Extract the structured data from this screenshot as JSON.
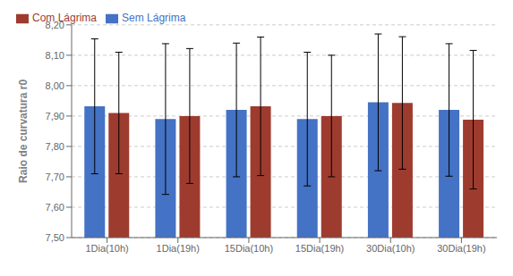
{
  "chart_data": {
    "type": "bar",
    "categories": [
      "1Dia(10h)",
      "1Dia(19h)",
      "15Dia(10h)",
      "15Dia(19h)",
      "30Dia(10h)",
      "30Dia(19h)"
    ],
    "series": [
      {
        "name": "Sem Lágrima",
        "color": "#4472C4",
        "values": [
          7.932,
          7.89,
          7.92,
          7.89,
          7.945,
          7.92
        ],
        "errors": [
          0.222,
          0.248,
          0.22,
          0.22,
          0.225,
          0.218
        ]
      },
      {
        "name": "Com Lágrima",
        "color": "#9E3B2F",
        "values": [
          7.91,
          7.9,
          7.932,
          7.9,
          7.943,
          7.888
        ],
        "errors": [
          0.2,
          0.222,
          0.228,
          0.2,
          0.218,
          0.228
        ]
      }
    ],
    "ylabel": "Raio de curvatura r0",
    "ylim": [
      7.5,
      8.2
    ],
    "yticks": [
      {
        "value": 7.5,
        "label": "7,50"
      },
      {
        "value": 7.6,
        "label": "7,60"
      },
      {
        "value": 7.7,
        "label": "7,70"
      },
      {
        "value": 7.8,
        "label": "7,80"
      },
      {
        "value": 7.9,
        "label": "7,90"
      },
      {
        "value": 8.0,
        "label": "8,00"
      },
      {
        "value": 8.1,
        "label": "8,10"
      },
      {
        "value": 8.2,
        "label": "8,20"
      }
    ],
    "grid": true,
    "legend": "upper left"
  }
}
